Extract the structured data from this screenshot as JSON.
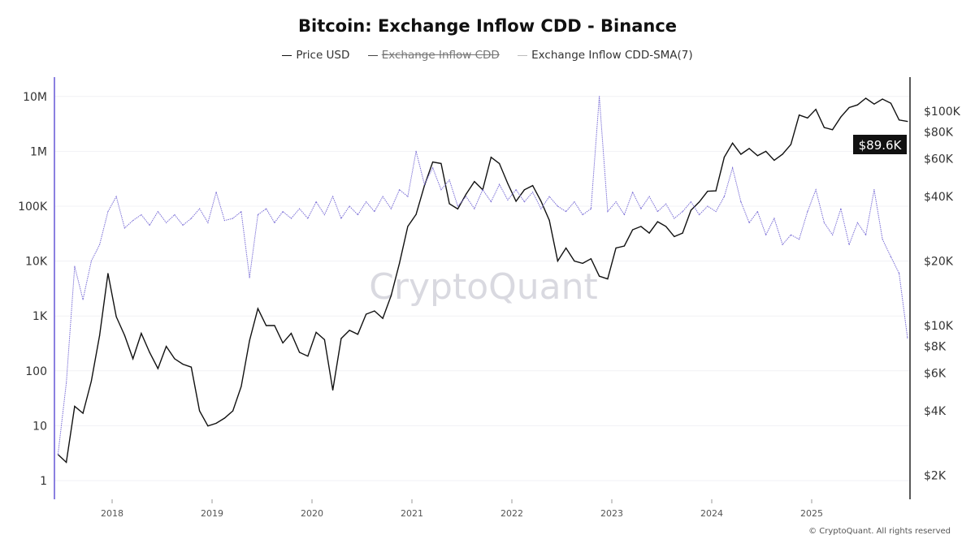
{
  "chart_data": {
    "type": "line",
    "title": "Bitcoin: Exchange Inflow CDD - Binance",
    "legend": [
      {
        "name": "Price USD",
        "color": "#111111",
        "hidden": false
      },
      {
        "name": "Exchange Inflow CDD",
        "color": "#444444",
        "hidden": true
      },
      {
        "name": "Exchange Inflow CDD-SMA(7)",
        "color": "#7b6fd6",
        "hidden": false
      }
    ],
    "legend_placement": "top-center",
    "x_ticks": [
      "2018",
      "2019",
      "2020",
      "2021",
      "2022",
      "2023",
      "2024",
      "2025"
    ],
    "xlim": [
      "2017-06",
      "2025-12"
    ],
    "left_axis": {
      "scale": "log",
      "ticks": [
        "1",
        "10",
        "100",
        "1K",
        "10K",
        "100K",
        "1M",
        "10M"
      ],
      "tick_values": [
        1,
        10,
        100,
        1000,
        10000,
        100000,
        1000000,
        10000000
      ]
    },
    "right_axis": {
      "scale": "log",
      "ticks": [
        "$2K",
        "$4K",
        "$6K",
        "$8K",
        "$10K",
        "$20K",
        "$40K",
        "$60K",
        "$80K",
        "$100K"
      ],
      "tick_values": [
        2000,
        4000,
        6000,
        8000,
        10000,
        20000,
        40000,
        60000,
        80000,
        100000
      ]
    },
    "current_price_label": "$89.6K",
    "grid": true,
    "series": [
      {
        "name": "Price USD",
        "axis": "right",
        "color": "#111111",
        "points": [
          [
            "2017-06",
            2500
          ],
          [
            "2017-07",
            2300
          ],
          [
            "2017-08",
            4200
          ],
          [
            "2017-09",
            3900
          ],
          [
            "2017-10",
            5500
          ],
          [
            "2017-11",
            9000
          ],
          [
            "2017-12",
            17500
          ],
          [
            "2018-01",
            11000
          ],
          [
            "2018-02",
            9000
          ],
          [
            "2018-03",
            7000
          ],
          [
            "2018-04",
            9200
          ],
          [
            "2018-05",
            7500
          ],
          [
            "2018-06",
            6300
          ],
          [
            "2018-07",
            8000
          ],
          [
            "2018-08",
            7000
          ],
          [
            "2018-09",
            6600
          ],
          [
            "2018-10",
            6400
          ],
          [
            "2018-11",
            4000
          ],
          [
            "2018-12",
            3400
          ],
          [
            "2019-01",
            3500
          ],
          [
            "2019-02",
            3700
          ],
          [
            "2019-03",
            4000
          ],
          [
            "2019-04",
            5200
          ],
          [
            "2019-05",
            8500
          ],
          [
            "2019-06",
            12000
          ],
          [
            "2019-07",
            10000
          ],
          [
            "2019-08",
            10000
          ],
          [
            "2019-09",
            8300
          ],
          [
            "2019-10",
            9200
          ],
          [
            "2019-11",
            7500
          ],
          [
            "2019-12",
            7200
          ],
          [
            "2020-01",
            9300
          ],
          [
            "2020-02",
            8600
          ],
          [
            "2020-03",
            5000
          ],
          [
            "2020-04",
            8700
          ],
          [
            "2020-05",
            9500
          ],
          [
            "2020-06",
            9100
          ],
          [
            "2020-07",
            11300
          ],
          [
            "2020-08",
            11700
          ],
          [
            "2020-09",
            10800
          ],
          [
            "2020-10",
            13800
          ],
          [
            "2020-11",
            19500
          ],
          [
            "2020-12",
            29000
          ],
          [
            "2021-01",
            33000
          ],
          [
            "2021-02",
            45000
          ],
          [
            "2021-03",
            58000
          ],
          [
            "2021-04",
            57000
          ],
          [
            "2021-05",
            37000
          ],
          [
            "2021-06",
            35000
          ],
          [
            "2021-07",
            41000
          ],
          [
            "2021-08",
            47000
          ],
          [
            "2021-09",
            43000
          ],
          [
            "2021-10",
            61000
          ],
          [
            "2021-11",
            57000
          ],
          [
            "2021-12",
            46000
          ],
          [
            "2022-01",
            38000
          ],
          [
            "2022-02",
            43000
          ],
          [
            "2022-03",
            45000
          ],
          [
            "2022-04",
            38000
          ],
          [
            "2022-05",
            31000
          ],
          [
            "2022-06",
            20000
          ],
          [
            "2022-07",
            23000
          ],
          [
            "2022-08",
            20000
          ],
          [
            "2022-09",
            19500
          ],
          [
            "2022-10",
            20500
          ],
          [
            "2022-11",
            17000
          ],
          [
            "2022-12",
            16500
          ],
          [
            "2023-01",
            23000
          ],
          [
            "2023-02",
            23500
          ],
          [
            "2023-03",
            28000
          ],
          [
            "2023-04",
            29000
          ],
          [
            "2023-05",
            27000
          ],
          [
            "2023-06",
            30500
          ],
          [
            "2023-07",
            29000
          ],
          [
            "2023-08",
            26000
          ],
          [
            "2023-09",
            27000
          ],
          [
            "2023-10",
            34500
          ],
          [
            "2023-11",
            37700
          ],
          [
            "2023-12",
            42300
          ],
          [
            "2024-01",
            42500
          ],
          [
            "2024-02",
            61000
          ],
          [
            "2024-03",
            71000
          ],
          [
            "2024-04",
            63000
          ],
          [
            "2024-05",
            67000
          ],
          [
            "2024-06",
            62000
          ],
          [
            "2024-07",
            65000
          ],
          [
            "2024-08",
            59000
          ],
          [
            "2024-09",
            63000
          ],
          [
            "2024-10",
            70000
          ],
          [
            "2024-11",
            96000
          ],
          [
            "2024-12",
            93000
          ],
          [
            "2025-01",
            102000
          ],
          [
            "2025-02",
            84000
          ],
          [
            "2025-03",
            82000
          ],
          [
            "2025-04",
            94000
          ],
          [
            "2025-05",
            104000
          ],
          [
            "2025-06",
            107000
          ],
          [
            "2025-07",
            115000
          ],
          [
            "2025-08",
            108000
          ],
          [
            "2025-09",
            114000
          ],
          [
            "2025-10",
            109000
          ],
          [
            "2025-11",
            91000
          ],
          [
            "2025-12",
            89600
          ]
        ]
      },
      {
        "name": "Exchange Inflow CDD-SMA(7)",
        "axis": "left",
        "color": "#7b6fd6",
        "points": [
          [
            "2017-06",
            3
          ],
          [
            "2017-07",
            60
          ],
          [
            "2017-08",
            8000
          ],
          [
            "2017-09",
            2000
          ],
          [
            "2017-10",
            10000
          ],
          [
            "2017-11",
            20000
          ],
          [
            "2017-12",
            80000
          ],
          [
            "2018-01",
            150000
          ],
          [
            "2018-02",
            40000
          ],
          [
            "2018-03",
            55000
          ],
          [
            "2018-04",
            70000
          ],
          [
            "2018-05",
            45000
          ],
          [
            "2018-06",
            80000
          ],
          [
            "2018-07",
            50000
          ],
          [
            "2018-08",
            70000
          ],
          [
            "2018-09",
            45000
          ],
          [
            "2018-10",
            60000
          ],
          [
            "2018-11",
            90000
          ],
          [
            "2018-12",
            50000
          ],
          [
            "2019-01",
            180000
          ],
          [
            "2019-02",
            55000
          ],
          [
            "2019-03",
            60000
          ],
          [
            "2019-04",
            80000
          ],
          [
            "2019-05",
            5000
          ],
          [
            "2019-06",
            70000
          ],
          [
            "2019-07",
            90000
          ],
          [
            "2019-08",
            50000
          ],
          [
            "2019-09",
            80000
          ],
          [
            "2019-10",
            60000
          ],
          [
            "2019-11",
            90000
          ],
          [
            "2019-12",
            60000
          ],
          [
            "2020-01",
            120000
          ],
          [
            "2020-02",
            70000
          ],
          [
            "2020-03",
            150000
          ],
          [
            "2020-04",
            60000
          ],
          [
            "2020-05",
            100000
          ],
          [
            "2020-06",
            70000
          ],
          [
            "2020-07",
            120000
          ],
          [
            "2020-08",
            80000
          ],
          [
            "2020-09",
            150000
          ],
          [
            "2020-10",
            90000
          ],
          [
            "2020-11",
            200000
          ],
          [
            "2020-12",
            150000
          ],
          [
            "2021-01",
            1000000
          ],
          [
            "2021-02",
            250000
          ],
          [
            "2021-03",
            500000
          ],
          [
            "2021-04",
            200000
          ],
          [
            "2021-05",
            300000
          ],
          [
            "2021-06",
            100000
          ],
          [
            "2021-07",
            150000
          ],
          [
            "2021-08",
            90000
          ],
          [
            "2021-09",
            200000
          ],
          [
            "2021-10",
            120000
          ],
          [
            "2021-11",
            250000
          ],
          [
            "2021-12",
            130000
          ],
          [
            "2022-01",
            200000
          ],
          [
            "2022-02",
            120000
          ],
          [
            "2022-03",
            180000
          ],
          [
            "2022-04",
            90000
          ],
          [
            "2022-05",
            150000
          ],
          [
            "2022-06",
            100000
          ],
          [
            "2022-07",
            80000
          ],
          [
            "2022-08",
            120000
          ],
          [
            "2022-09",
            70000
          ],
          [
            "2022-10",
            90000
          ],
          [
            "2022-11",
            10000000
          ],
          [
            "2022-12",
            80000
          ],
          [
            "2023-01",
            120000
          ],
          [
            "2023-02",
            70000
          ],
          [
            "2023-03",
            180000
          ],
          [
            "2023-04",
            90000
          ],
          [
            "2023-05",
            150000
          ],
          [
            "2023-06",
            80000
          ],
          [
            "2023-07",
            110000
          ],
          [
            "2023-08",
            60000
          ],
          [
            "2023-09",
            80000
          ],
          [
            "2023-10",
            120000
          ],
          [
            "2023-11",
            70000
          ],
          [
            "2023-12",
            100000
          ],
          [
            "2024-01",
            80000
          ],
          [
            "2024-02",
            150000
          ],
          [
            "2024-03",
            500000
          ],
          [
            "2024-04",
            120000
          ],
          [
            "2024-05",
            50000
          ],
          [
            "2024-06",
            80000
          ],
          [
            "2024-07",
            30000
          ],
          [
            "2024-08",
            60000
          ],
          [
            "2024-09",
            20000
          ],
          [
            "2024-10",
            30000
          ],
          [
            "2024-11",
            25000
          ],
          [
            "2024-12",
            80000
          ],
          [
            "2025-01",
            200000
          ],
          [
            "2025-02",
            50000
          ],
          [
            "2025-03",
            30000
          ],
          [
            "2025-04",
            90000
          ],
          [
            "2025-05",
            20000
          ],
          [
            "2025-06",
            50000
          ],
          [
            "2025-07",
            30000
          ],
          [
            "2025-08",
            200000
          ],
          [
            "2025-09",
            25000
          ],
          [
            "2025-10",
            12000
          ],
          [
            "2025-11",
            6000
          ],
          [
            "2025-12",
            400
          ]
        ]
      }
    ]
  },
  "watermark": "CryptoQuant",
  "footer": "© CryptoQuant. All rights reserved"
}
